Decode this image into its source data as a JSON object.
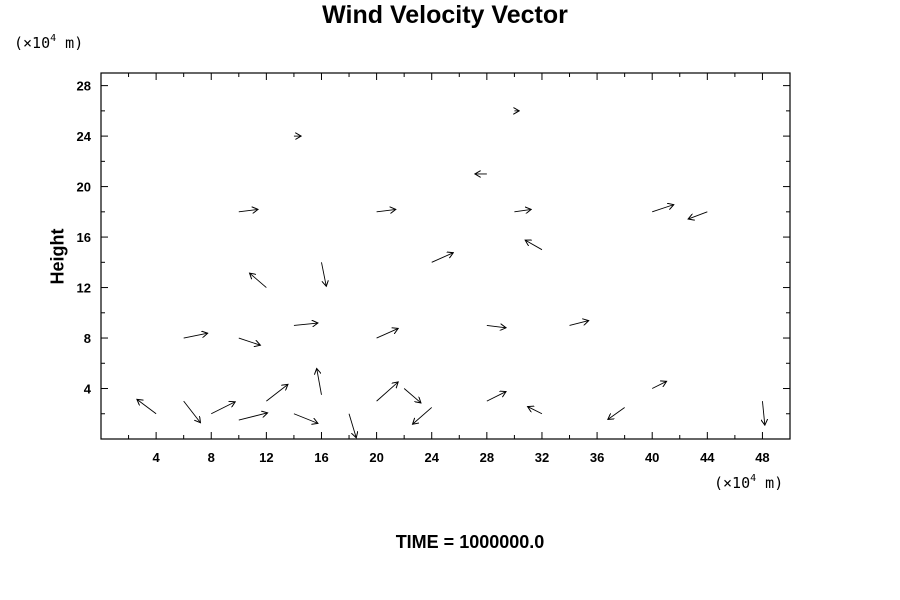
{
  "chart_data": {
    "type": "vector",
    "title": "Wind Velocity Vector",
    "ylabel": "Height",
    "x_unit_prefix": "(×10",
    "unit_exp": "4",
    "unit_suffix": " m)",
    "xlim": [
      0,
      50
    ],
    "ylim": [
      0,
      29
    ],
    "x_ticks": [
      4,
      8,
      12,
      16,
      20,
      24,
      28,
      32,
      36,
      40,
      44,
      48
    ],
    "y_ticks": [
      4,
      8,
      12,
      16,
      20,
      24,
      28
    ],
    "grid": false,
    "footer": "TIME = 1000000.0",
    "vectors": [
      {
        "x": 4,
        "y": 2,
        "u": -1.6,
        "v": 1.2
      },
      {
        "x": 6,
        "y": 3,
        "u": 1.4,
        "v": -1.8
      },
      {
        "x": 8,
        "y": 2,
        "u": 2.0,
        "v": 1.0
      },
      {
        "x": 10,
        "y": 1.5,
        "u": 2.4,
        "v": 0.6
      },
      {
        "x": 12,
        "y": 3,
        "u": 1.8,
        "v": 1.4
      },
      {
        "x": 14,
        "y": 2,
        "u": 2.0,
        "v": -0.8
      },
      {
        "x": 16,
        "y": 3.5,
        "u": -0.4,
        "v": 2.2
      },
      {
        "x": 18,
        "y": 2,
        "u": 0.6,
        "v": -2.0
      },
      {
        "x": 20,
        "y": 3,
        "u": 1.8,
        "v": 1.6
      },
      {
        "x": 22,
        "y": 4,
        "u": 1.4,
        "v": -1.2
      },
      {
        "x": 24,
        "y": 2.5,
        "u": -1.6,
        "v": -1.4
      },
      {
        "x": 28,
        "y": 3,
        "u": 1.6,
        "v": 0.8
      },
      {
        "x": 32,
        "y": 2,
        "u": -1.2,
        "v": 0.6
      },
      {
        "x": 38,
        "y": 2.5,
        "u": -1.4,
        "v": -1.0
      },
      {
        "x": 40,
        "y": 4,
        "u": 1.2,
        "v": 0.6
      },
      {
        "x": 48,
        "y": 3,
        "u": 0.2,
        "v": -2.0
      },
      {
        "x": 6,
        "y": 8,
        "u": 2.0,
        "v": 0.4
      },
      {
        "x": 10,
        "y": 8,
        "u": 1.8,
        "v": -0.6
      },
      {
        "x": 14,
        "y": 9,
        "u": 2.0,
        "v": 0.2
      },
      {
        "x": 20,
        "y": 8,
        "u": 1.8,
        "v": 0.8
      },
      {
        "x": 28,
        "y": 9,
        "u": 1.6,
        "v": -0.2
      },
      {
        "x": 34,
        "y": 9,
        "u": 1.6,
        "v": 0.4
      },
      {
        "x": 12,
        "y": 12,
        "u": -1.4,
        "v": 1.2
      },
      {
        "x": 16,
        "y": 14,
        "u": 0.4,
        "v": -2.0
      },
      {
        "x": 24,
        "y": 14,
        "u": 1.8,
        "v": 0.8
      },
      {
        "x": 32,
        "y": 15,
        "u": -1.4,
        "v": 0.8
      },
      {
        "x": 10,
        "y": 18,
        "u": 1.6,
        "v": 0.2
      },
      {
        "x": 20,
        "y": 18,
        "u": 1.6,
        "v": 0.2
      },
      {
        "x": 30,
        "y": 18,
        "u": 1.4,
        "v": 0.2
      },
      {
        "x": 40,
        "y": 18,
        "u": 1.8,
        "v": 0.6
      },
      {
        "x": 44,
        "y": 18,
        "u": -1.6,
        "v": -0.6
      },
      {
        "x": 28,
        "y": 21,
        "u": -1.0,
        "v": 0.0
      },
      {
        "x": 14,
        "y": 24,
        "u": 0.6,
        "v": 0.0
      },
      {
        "x": 30,
        "y": 26,
        "u": 0.4,
        "v": 0.0
      }
    ]
  }
}
